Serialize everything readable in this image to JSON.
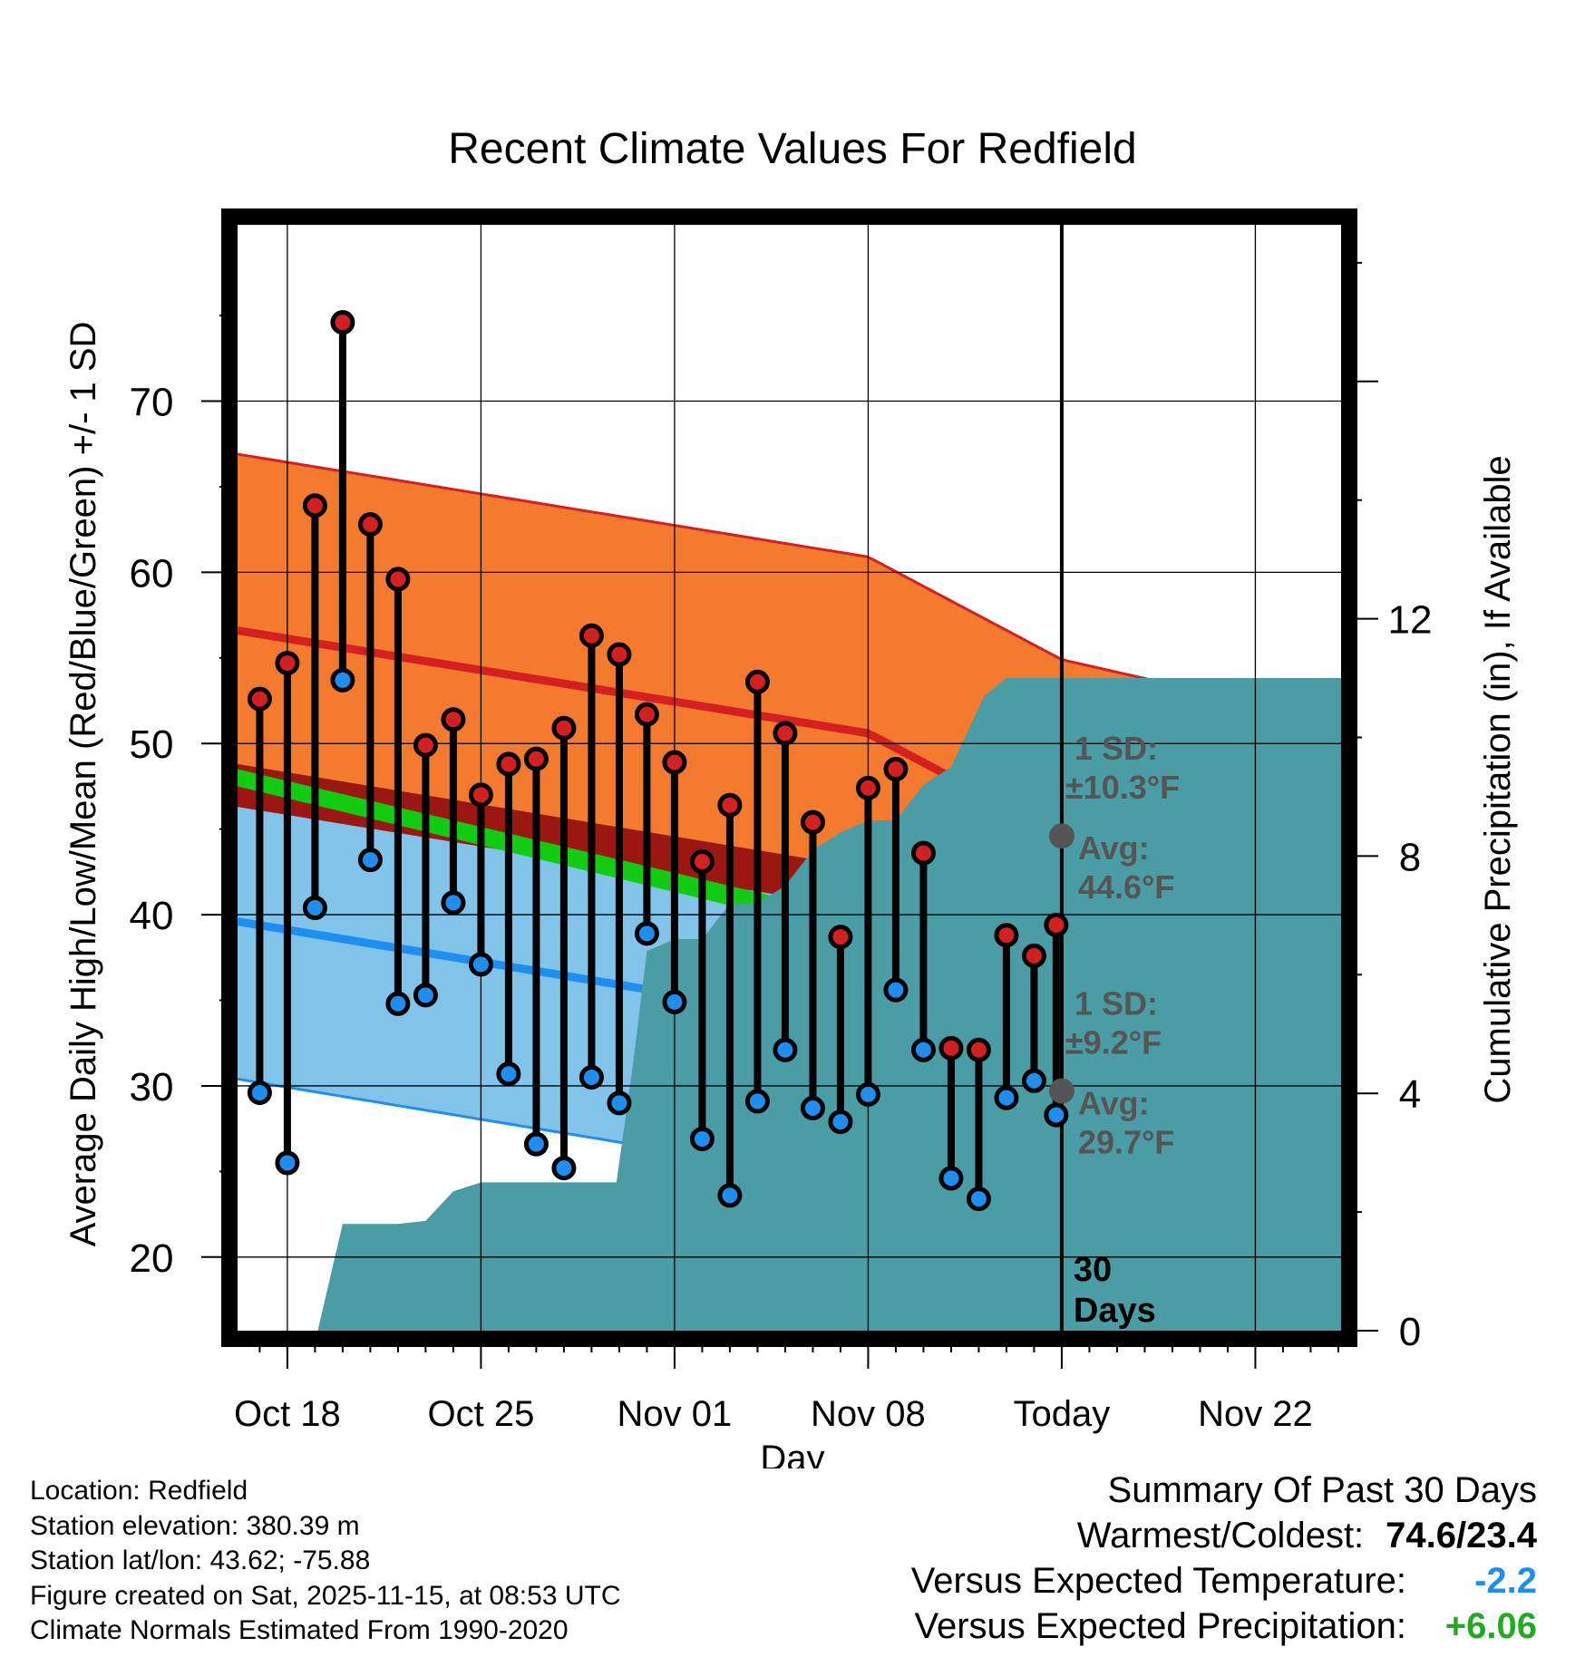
{
  "colors": {
    "high": "#d42020",
    "high_band": "#f47a2e",
    "low": "#1e8ff0",
    "low_band": "#82c3ea",
    "mean": "#12cc12",
    "overlap": "#9c1612",
    "precip": "#4a9ca5",
    "marker_gray": "#555555",
    "neg_value": "#1e8ff0",
    "pos_value": "#22aa22"
  },
  "chart_data": {
    "type": "line",
    "title": "Recent Climate Values For Redfield",
    "xlabel": "Day",
    "ylabel": "Average Daily High/Low/Mean (Red/Blue/Green) +/- 1 SD",
    "y2label": "Cumulative Precipitation (in), If Available",
    "ylim": [
      15.7,
      80.3
    ],
    "y2lim": [
      0,
      18.64
    ],
    "xlim": [
      -29.8,
      10.1
    ],
    "x_unit": "days relative to today (Nov 15)",
    "y_ticks": [
      20,
      30,
      40,
      50,
      60,
      70
    ],
    "y2_ticks": [
      0,
      4,
      8,
      12
    ],
    "x_ticks": [
      {
        "x": -28,
        "label": "Oct 18"
      },
      {
        "x": -21,
        "label": "Oct 25"
      },
      {
        "x": -14,
        "label": "Nov 01"
      },
      {
        "x": -7,
        "label": "Nov 08"
      },
      {
        "x": 0,
        "label": "Today"
      },
      {
        "x": 7,
        "label": "Nov 22"
      }
    ],
    "normals": {
      "high_mean": [
        [
          -29.8,
          56.6
        ],
        [
          -7,
          50.6
        ],
        [
          0,
          44.6
        ],
        [
          10.1,
          40.9
        ]
      ],
      "high_sd": 10.3,
      "low_mean": [
        [
          -29.8,
          39.6
        ],
        [
          -7,
          33.5
        ],
        [
          0,
          29.7
        ],
        [
          10.1,
          26.0
        ]
      ],
      "low_sd": 9.2,
      "mean_band": [
        [
          -29.8,
          48.5,
          47.5
        ],
        [
          -5,
          39.0,
          37.8
        ],
        [
          -4.1,
          39.0,
          38.2
        ]
      ],
      "annotations": [
        {
          "x": 0,
          "y": 44.6,
          "sd_label": "1 SD:",
          "sd_value": "±10.3°F",
          "avg_label": "Avg:",
          "avg_value": "44.6°F"
        },
        {
          "x": 0,
          "y": 29.7,
          "sd_label": "1 SD:",
          "sd_value": "±9.2°F",
          "avg_label": "Avg:",
          "avg_value": "29.7°F"
        }
      ]
    },
    "series": [
      {
        "name": "High",
        "x": [
          -29,
          -28,
          -27,
          -26,
          -25,
          -24,
          -23,
          -22,
          -21,
          -20,
          -19,
          -18,
          -17,
          -16,
          -15,
          -14,
          -13,
          -12,
          -11,
          -10,
          -9,
          -8,
          -7,
          -6,
          -5,
          -4,
          -3,
          -2,
          -1
        ],
        "values": [
          52.6,
          54.7,
          63.9,
          74.6,
          62.8,
          59.6,
          49.9,
          51.4,
          47.0,
          48.8,
          49.1,
          50.9,
          56.3,
          55.2,
          51.7,
          48.9,
          43.1,
          46.4,
          53.6,
          50.6,
          45.4,
          38.7,
          47.4,
          48.5,
          43.6,
          32.2,
          32.1,
          38.8,
          37.6
        ]
      },
      {
        "name": "Low",
        "x": [
          -29,
          -28,
          -27,
          -26,
          -25,
          -24,
          -23,
          -22,
          -21,
          -20,
          -19,
          -18,
          -17,
          -16,
          -15,
          -14,
          -13,
          -12,
          -11,
          -10,
          -9,
          -8,
          -7,
          -6,
          -5,
          -4,
          -3,
          -2,
          -1
        ],
        "values": [
          29.6,
          25.5,
          40.4,
          53.7,
          43.2,
          34.8,
          35.3,
          40.7,
          37.1,
          30.7,
          26.6,
          25.2,
          30.5,
          29.0,
          38.9,
          34.9,
          26.9,
          23.6,
          29.1,
          32.1,
          28.7,
          27.9,
          29.5,
          35.6,
          32.1,
          24.6,
          23.4,
          29.3,
          30.3
        ]
      },
      {
        "name": "Cumulative Precipitation",
        "x": [
          -26.9,
          -26,
          -25.3,
          -24,
          -23,
          -22,
          -21,
          -20,
          -19,
          -18,
          -17,
          -16.1,
          -15.5,
          -15,
          -14,
          -13,
          -12,
          -11,
          -10,
          -9,
          -8,
          -7,
          -6,
          -5,
          -4,
          -3.5,
          -2.8,
          -2,
          -1,
          0,
          10.1
        ],
        "values": [
          0.0,
          1.8,
          1.8,
          1.8,
          1.85,
          2.35,
          2.5,
          2.5,
          2.5,
          2.5,
          2.5,
          2.5,
          4.5,
          6.4,
          6.6,
          6.6,
          7.2,
          7.2,
          7.5,
          8.1,
          8.4,
          8.6,
          8.6,
          9.2,
          9.5,
          10.0,
          10.7,
          11.0,
          11.0,
          11.0,
          11.0
        ]
      }
    ],
    "last_partial_day": {
      "x": -0.2,
      "high": 39.4,
      "low": 28.3
    },
    "today_line": 0,
    "days_label": [
      "30",
      "Days"
    ]
  },
  "footer": {
    "location": "Location: Redfield",
    "elevation": "Station elevation: 380.39 m",
    "latlon": "Station lat/lon: 43.62; -75.88",
    "created": "Figure created on Sat, 2025-11-15, at 08:53 UTC",
    "normals": "Climate Normals Estimated From 1990-2020"
  },
  "summary": {
    "title": "Summary Of Past 30 Days",
    "warm_cold_label": "Warmest/Coldest:",
    "warm_cold_value": "74.6/23.4",
    "temp_label": "Versus Expected Temperature:",
    "temp_value": "-2.2",
    "precip_label": "Versus Expected Precipitation:",
    "precip_value": "+6.06"
  }
}
